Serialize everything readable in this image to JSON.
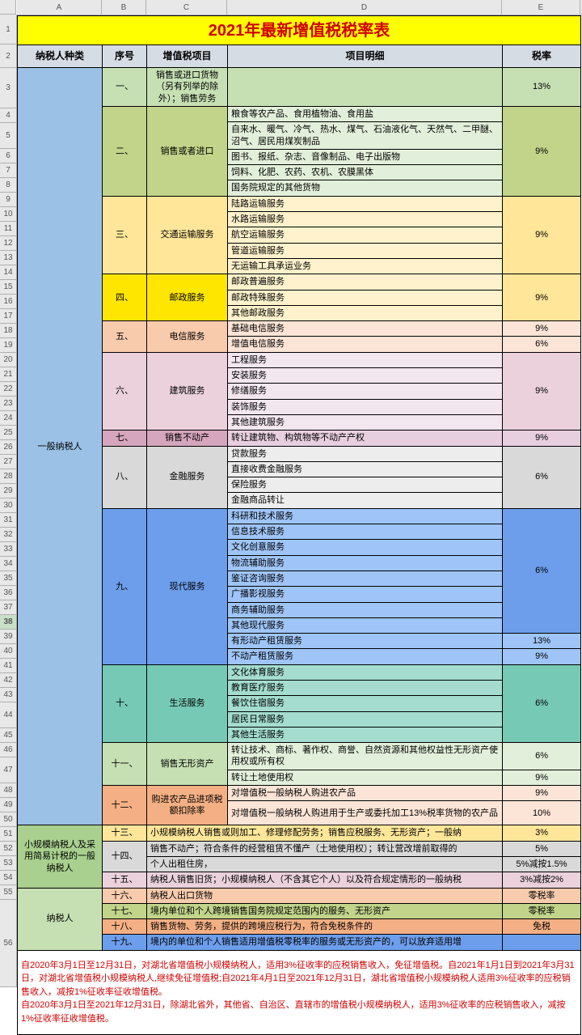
{
  "title": "2021年最新增值税税率表",
  "headers": {
    "a": "纳税人种类",
    "b": "序号",
    "c": "增值税项目",
    "d": "项目明细",
    "e": "税率"
  },
  "colLetters": [
    "A",
    "B",
    "C",
    "D",
    "E"
  ],
  "colWidthsHdr": [
    20,
    105,
    55,
    100,
    340,
    97
  ],
  "rowNums": [
    1,
    2,
    3,
    4,
    5,
    6,
    7,
    8,
    9,
    10,
    11,
    12,
    13,
    14,
    15,
    16,
    17,
    18,
    19,
    20,
    21,
    22,
    23,
    24,
    25,
    26,
    27,
    28,
    29,
    30,
    31,
    32,
    33,
    34,
    35,
    36,
    37,
    38,
    39,
    40,
    41,
    42,
    43,
    44,
    45,
    46,
    47,
    48,
    49,
    50,
    51,
    52,
    53,
    54,
    55,
    56
  ],
  "types": {
    "t1": "一般纳税人",
    "t2": "小规模纳税人及采用简易计税的一般纳税人",
    "t3": "纳税人"
  },
  "sections": {
    "s1": {
      "num": "一、",
      "name": "销售或进口货物（另有列举的除外）；销售劳务",
      "rate": "13%",
      "color": "#c6e0b4",
      "rateColor": "#c6e0b4"
    },
    "s2": {
      "num": "二、",
      "name": "销售或者进口",
      "rate": "9%",
      "color": "#c1d48a",
      "rateColor": "#c1d48a",
      "items": [
        "粮食等农产品、食用植物油、食用盐",
        "自来水、暖气、冷气、热水、煤气、石油液化气、天然气、二甲醚、沼气、居民用煤炭制品",
        "图书、报纸、杂志、音像制品、电子出版物",
        "饲料、化肥、农药、农机、农膜黑体",
        "国务院规定的其他货物"
      ]
    },
    "s3": {
      "num": "三、",
      "name": "交通运输服务",
      "rate": "9%",
      "color": "#ffe699",
      "rateColor": "#ffe699",
      "items": [
        "陆路运输服务",
        "水路运输服务",
        "航空运输服务",
        "管道运输服务",
        "无运输工具承运业务"
      ]
    },
    "s4": {
      "num": "四、",
      "name": "邮政服务",
      "rate": "9%",
      "color": "#ffe600",
      "rateColor": "#ffe699",
      "items": [
        "邮政普遍服务",
        "邮政特殊服务",
        "其他邮政服务"
      ]
    },
    "s5": {
      "num": "五、",
      "name": "电信服务",
      "color": "#f8cbad",
      "items": [
        {
          "d": "基础电信服务",
          "rate": "9%"
        },
        {
          "d": "增值电信服务",
          "rate": "6%"
        }
      ]
    },
    "s6": {
      "num": "六、",
      "name": "建筑服务",
      "rate": "9%",
      "color": "#ead1dc",
      "rateColor": "#ead1dc",
      "items": [
        "工程服务",
        "安装服务",
        "修缮服务",
        "装饰服务",
        "其他建筑服务"
      ]
    },
    "s7": {
      "num": "七、",
      "name": "销售不动产",
      "d": "转让建筑物、构筑物等不动产产权",
      "rate": "9%",
      "color": "#d5a6bd"
    },
    "s8": {
      "num": "八、",
      "name": "金融服务",
      "rate": "6%",
      "color": "#d9d9d9",
      "rateColor": "#d9d9d9",
      "items": [
        "贷款服务",
        "直接收费金融服务",
        "保险服务",
        "金融商品转让"
      ]
    },
    "s9": {
      "num": "九、",
      "name": "现代服务",
      "rate": "6%",
      "color": "#6d9eeb",
      "rateColor": "#6d9eeb",
      "items": [
        "科研和技术服务",
        "信息技术服务",
        "文化创意服务",
        "物流辅助服务",
        "鉴证咨询服务",
        "广播影视服务",
        "商务辅助服务",
        "其他现代服务"
      ],
      "extra": [
        {
          "d": "有形动产租赁服务",
          "rate": "13%"
        },
        {
          "d": "不动产租赁服务",
          "rate": "9%"
        }
      ]
    },
    "s10": {
      "num": "十、",
      "name": "生活服务",
      "rate": "6%",
      "color": "#76c9b5",
      "rateColor": "#76c9b5",
      "items": [
        "文化体育服务",
        "教育医疗服务",
        "餐饮住宿服务",
        "居民日常服务",
        "其他生活服务"
      ]
    },
    "s11": {
      "num": "十一、",
      "name": "销售无形资产",
      "color": "#c6e0b4",
      "items": [
        {
          "d": "转让技术、商标、著作权、商誉、自然资源和其他权益性无形资产使用权或所有权",
          "rate": "6%"
        },
        {
          "d": "转让土地使用权",
          "rate": "9%"
        }
      ]
    },
    "s12": {
      "num": "十二、",
      "name": "购进农产品进项税额扣除率",
      "color": "#f4b084",
      "items": [
        {
          "d": "对增值税一般纳税人购进农产品",
          "rate": "9%"
        },
        {
          "d": "对增值税一般纳税人购进用于生产或委托加工13%税率货物的农产品",
          "rate": "10%"
        }
      ]
    },
    "s13": {
      "num": "十三、",
      "d": "小规模纳税人销售或则加工、修理修配劳务；销售应税服务、无形资产；一般纳",
      "rate": "3%",
      "color": "#ffe699"
    },
    "s14": {
      "num": "十四、",
      "color": "#d9d9d9",
      "items": [
        {
          "d": "销售不动产；符合条件的经营租赁不懂产（土地使用权）；转让营改增前取得的",
          "rate": "5%"
        },
        {
          "d": "个人出租住房，",
          "rate": "5%减按1.5%"
        }
      ]
    },
    "s15": {
      "num": "十五、",
      "d": "纳税人销售旧货；小规模纳税人（不含其它个人）以及符合规定情形的一般纳税",
      "rate": "3%减按2%",
      "color": "#ead1dc"
    },
    "s16": {
      "num": "十六、",
      "d": "纳税人出口货物",
      "rate": "零税率",
      "color": "#f8cbad"
    },
    "s17": {
      "num": "十七、",
      "d": "境内单位和个人跨境销售国务院规定范围内的服务、无形资产",
      "rate": "零税率",
      "color": "#c1d48a"
    },
    "s18": {
      "num": "十八、",
      "d": "销售货物、劳务，提供的跨境应税行为，符合免税条件的",
      "rate": "免税",
      "color": "#f4b084"
    },
    "s19": {
      "num": "十九、",
      "d": "境内的单位和个人销售适用增值税零税率的服务或无形资产的，可以放弃适用增",
      "rate": "",
      "color": "#6d9eeb"
    }
  },
  "typeColors": {
    "t1": "#9bc2e6",
    "t2": "#a9d08e",
    "t3": "#c6e0b4"
  },
  "footer": "自2020年3月1日至12月31日，对湖北省增值税小规模纳税人，适用3%征收率的应税销售收入，免征增值税。自2021年1月1日到2021年3月31日，对湖北省增值税小规模纳税人,继续免征增值税;自2021年4月1日至2021年12月31日，湖北省增值税小规模纳税人适用3%征收率的应税销售收入，减按1%征收率征收增值税。\n自2020年3月1日至2021年12月31日，除湖北省外，其他省、自治区、直辖市的增值税小规模纳税人，适用3%征收率的应税销售收入，减按1%征收率征收增值税。",
  "rowHeights": {
    "r1": 37,
    "r2": 29,
    "r3": 50,
    "r4": 18,
    "r5": 32,
    "r6": 18,
    "r7": 18,
    "r8": 18,
    "r9": 18,
    "r10": 18,
    "r11": 18,
    "r12": 18,
    "r13": 18,
    "r14": 18,
    "r15": 18,
    "r16": 18,
    "r17": 18,
    "r18": 18,
    "r19": 18,
    "r20": 18,
    "r21": 18,
    "r22": 18,
    "r23": 18,
    "r24": 18,
    "r25": 18,
    "r26": 18,
    "r27": 18,
    "r28": 18,
    "r29": 18,
    "r30": 18,
    "r31": 18,
    "r32": 18,
    "r33": 18,
    "r34": 18,
    "r35": 18,
    "r36": 18,
    "r37": 18,
    "r38": 18,
    "r39": 18,
    "r40": 18,
    "r41": 18,
    "r42": 18,
    "r43": 18,
    "r44": 32,
    "r45": 18,
    "r46": 18,
    "r47": 32,
    "r48": 18,
    "r49": 18,
    "r50": 18,
    "r51": 18,
    "r52": 18,
    "r53": 18,
    "r54": 18,
    "r55": 18,
    "r56": 108
  },
  "detailBg": {
    "s2": "#e2efda",
    "s3": "#fff2cc",
    "s4": "#fff2cc",
    "s5": "#fce4d6",
    "s6": "#f2e6ef",
    "s7": "#e8cfe0",
    "s8": "#ededed",
    "s9": "#9fc5f8",
    "s10": "#a4ddcf",
    "s11": "#e2efda",
    "s12": "#fce4d6"
  }
}
